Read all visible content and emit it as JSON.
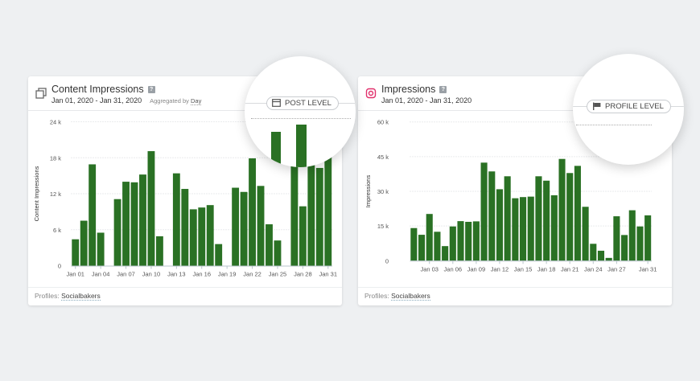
{
  "cards": [
    {
      "icon": "copy-layers-icon",
      "title": "Content Impressions",
      "help": "?",
      "dates": "Jan 01, 2020 - Jan 31, 2020",
      "aggregated_label": "Aggregated by",
      "aggregated_value": "Day",
      "level_badge": "POST LEVEL",
      "level_icon": "post-card-icon",
      "footer_label": "Profiles:",
      "footer_value": "Socialbakers"
    },
    {
      "icon": "instagram-icon",
      "title": "Impressions",
      "help": "?",
      "dates": "Jan 01, 2020 - Jan 31, 2020",
      "level_badge": "PROFILE LEVEL",
      "level_icon": "flag-icon",
      "footer_label": "Profiles:",
      "footer_value": "Socialbakers"
    }
  ],
  "colors": {
    "bar": "#2a7124",
    "instagram": "#e1306c",
    "background": "#eef0f2"
  },
  "chart_data": [
    {
      "type": "bar",
      "ylabel": "Content Impressions",
      "ylim": [
        0,
        24000
      ],
      "yticks": [
        0,
        6000,
        12000,
        18000,
        24000
      ],
      "ytick_labels": [
        "0",
        "6 k",
        "12 k",
        "18 k",
        "24 k"
      ],
      "grid": true,
      "categories": [
        "Jan 01",
        "Jan 02",
        "Jan 03",
        "Jan 04",
        "Jan 05",
        "Jan 06",
        "Jan 07",
        "Jan 08",
        "Jan 09",
        "Jan 10",
        "Jan 11",
        "Jan 12",
        "Jan 13",
        "Jan 14",
        "Jan 15",
        "Jan 16",
        "Jan 17",
        "Jan 18",
        "Jan 19",
        "Jan 20",
        "Jan 21",
        "Jan 22",
        "Jan 23",
        "Jan 24",
        "Jan 25",
        "Jan 26",
        "Jan 27",
        "Jan 28",
        "Jan 29",
        "Jan 30",
        "Jan 31"
      ],
      "xtick_labels": [
        "Jan 01",
        "Jan 04",
        "Jan 07",
        "Jan 10",
        "Jan 13",
        "Jan 16",
        "Jan 19",
        "Jan 22",
        "Jan 25",
        "Jan 28",
        "Jan 31"
      ],
      "values": [
        4400,
        7500,
        16900,
        5500,
        0,
        11100,
        14000,
        13900,
        15200,
        19100,
        4900,
        0,
        15400,
        12800,
        9400,
        9700,
        10100,
        3600,
        0,
        13000,
        12300,
        17900,
        13300,
        6900,
        4200,
        0,
        22200,
        9900,
        23600,
        16300,
        18300
      ]
    },
    {
      "type": "bar",
      "ylabel": "Impressions",
      "ylim": [
        0,
        60000
      ],
      "yticks": [
        0,
        15000,
        30000,
        45000,
        60000
      ],
      "ytick_labels": [
        "0",
        "15 k",
        "30 k",
        "45 k",
        "60 k"
      ],
      "grid": true,
      "categories": [
        "Jan 01",
        "Jan 02",
        "Jan 03",
        "Jan 04",
        "Jan 05",
        "Jan 06",
        "Jan 07",
        "Jan 08",
        "Jan 09",
        "Jan 10",
        "Jan 11",
        "Jan 12",
        "Jan 13",
        "Jan 14",
        "Jan 15",
        "Jan 16",
        "Jan 17",
        "Jan 18",
        "Jan 19",
        "Jan 20",
        "Jan 21",
        "Jan 22",
        "Jan 23",
        "Jan 24",
        "Jan 25",
        "Jan 26",
        "Jan 27",
        "Jan 28",
        "Jan 29",
        "Jan 30",
        "Jan 31"
      ],
      "xtick_labels": [
        "Jan 03",
        "Jan 06",
        "Jan 09",
        "Jan 12",
        "Jan 15",
        "Jan 18",
        "Jan 21",
        "Jan 24",
        "Jan 27",
        "Jan 31"
      ],
      "values": [
        14100,
        11200,
        20200,
        12500,
        6300,
        14800,
        17100,
        16800,
        17000,
        42400,
        38600,
        30900,
        36500,
        27000,
        27500,
        27700,
        36500,
        34600,
        28300,
        44000,
        37900,
        41000,
        23300,
        7300,
        4300,
        1200,
        19200,
        11100,
        21800,
        14800,
        19600
      ]
    }
  ]
}
